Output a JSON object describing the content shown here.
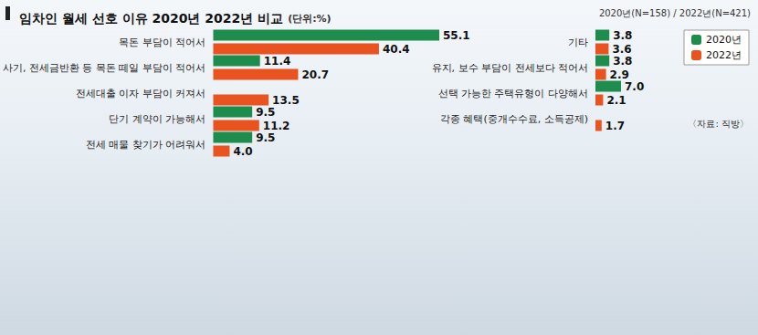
{
  "chart_data": [
    {
      "type": "bar",
      "orientation": "horizontal",
      "title": "임차인 월세 선호 이유 2020년 2022년 비교",
      "subtitle": "(단위:%)",
      "categories": [
        "목돈 부담이 적어서",
        "사기, 전세금반환 등 목돈 떼일 부담이 적어서",
        "전세대출 이자 부담이 커져서",
        "단기 계약이 가능해서",
        "전세 매물 찾기가 어려워서"
      ],
      "series": [
        {
          "name": "2020년",
          "color": "#1e8c4c",
          "values": [
            55.1,
            11.4,
            null,
            9.5,
            9.5
          ],
          "value_labels": [
            "55.1",
            "11.4",
            null,
            "9.5",
            "9.5"
          ]
        },
        {
          "name": "2022년",
          "color": "#e9531f",
          "values": [
            40.4,
            20.7,
            13.5,
            11.2,
            4.0
          ],
          "value_labels": [
            "40.4",
            "20.7",
            "13.5",
            "11.2",
            "4.0"
          ]
        }
      ],
      "xlim": [
        0,
        60
      ],
      "grid": false,
      "tick_labels": false,
      "data_labels": true
    },
    {
      "type": "bar",
      "orientation": "horizontal",
      "subtitle": "2020년(N=158) / 2022년(N=421)",
      "source": "〈자료: 직방〉",
      "categories": [
        "기타",
        "유지, 보수 부담이 전세보다 적어서",
        "선택 가능한 주택유형이 다양해서",
        "각종 혜택(중개수수료, 소득공제)"
      ],
      "series": [
        {
          "name": "2020년",
          "color": "#1e8c4c",
          "values": [
            3.8,
            3.8,
            7.0,
            null
          ],
          "value_labels": [
            "3.8",
            "3.8",
            "7.0",
            null
          ]
        },
        {
          "name": "2022년",
          "color": "#e9531f",
          "values": [
            3.6,
            2.9,
            2.1,
            1.7
          ],
          "value_labels": [
            "3.6",
            "2.9",
            "2.1",
            "1.7"
          ]
        }
      ],
      "xlim": [
        0,
        20
      ],
      "grid": false,
      "tick_labels": false,
      "data_labels": true,
      "legend": "right"
    }
  ]
}
